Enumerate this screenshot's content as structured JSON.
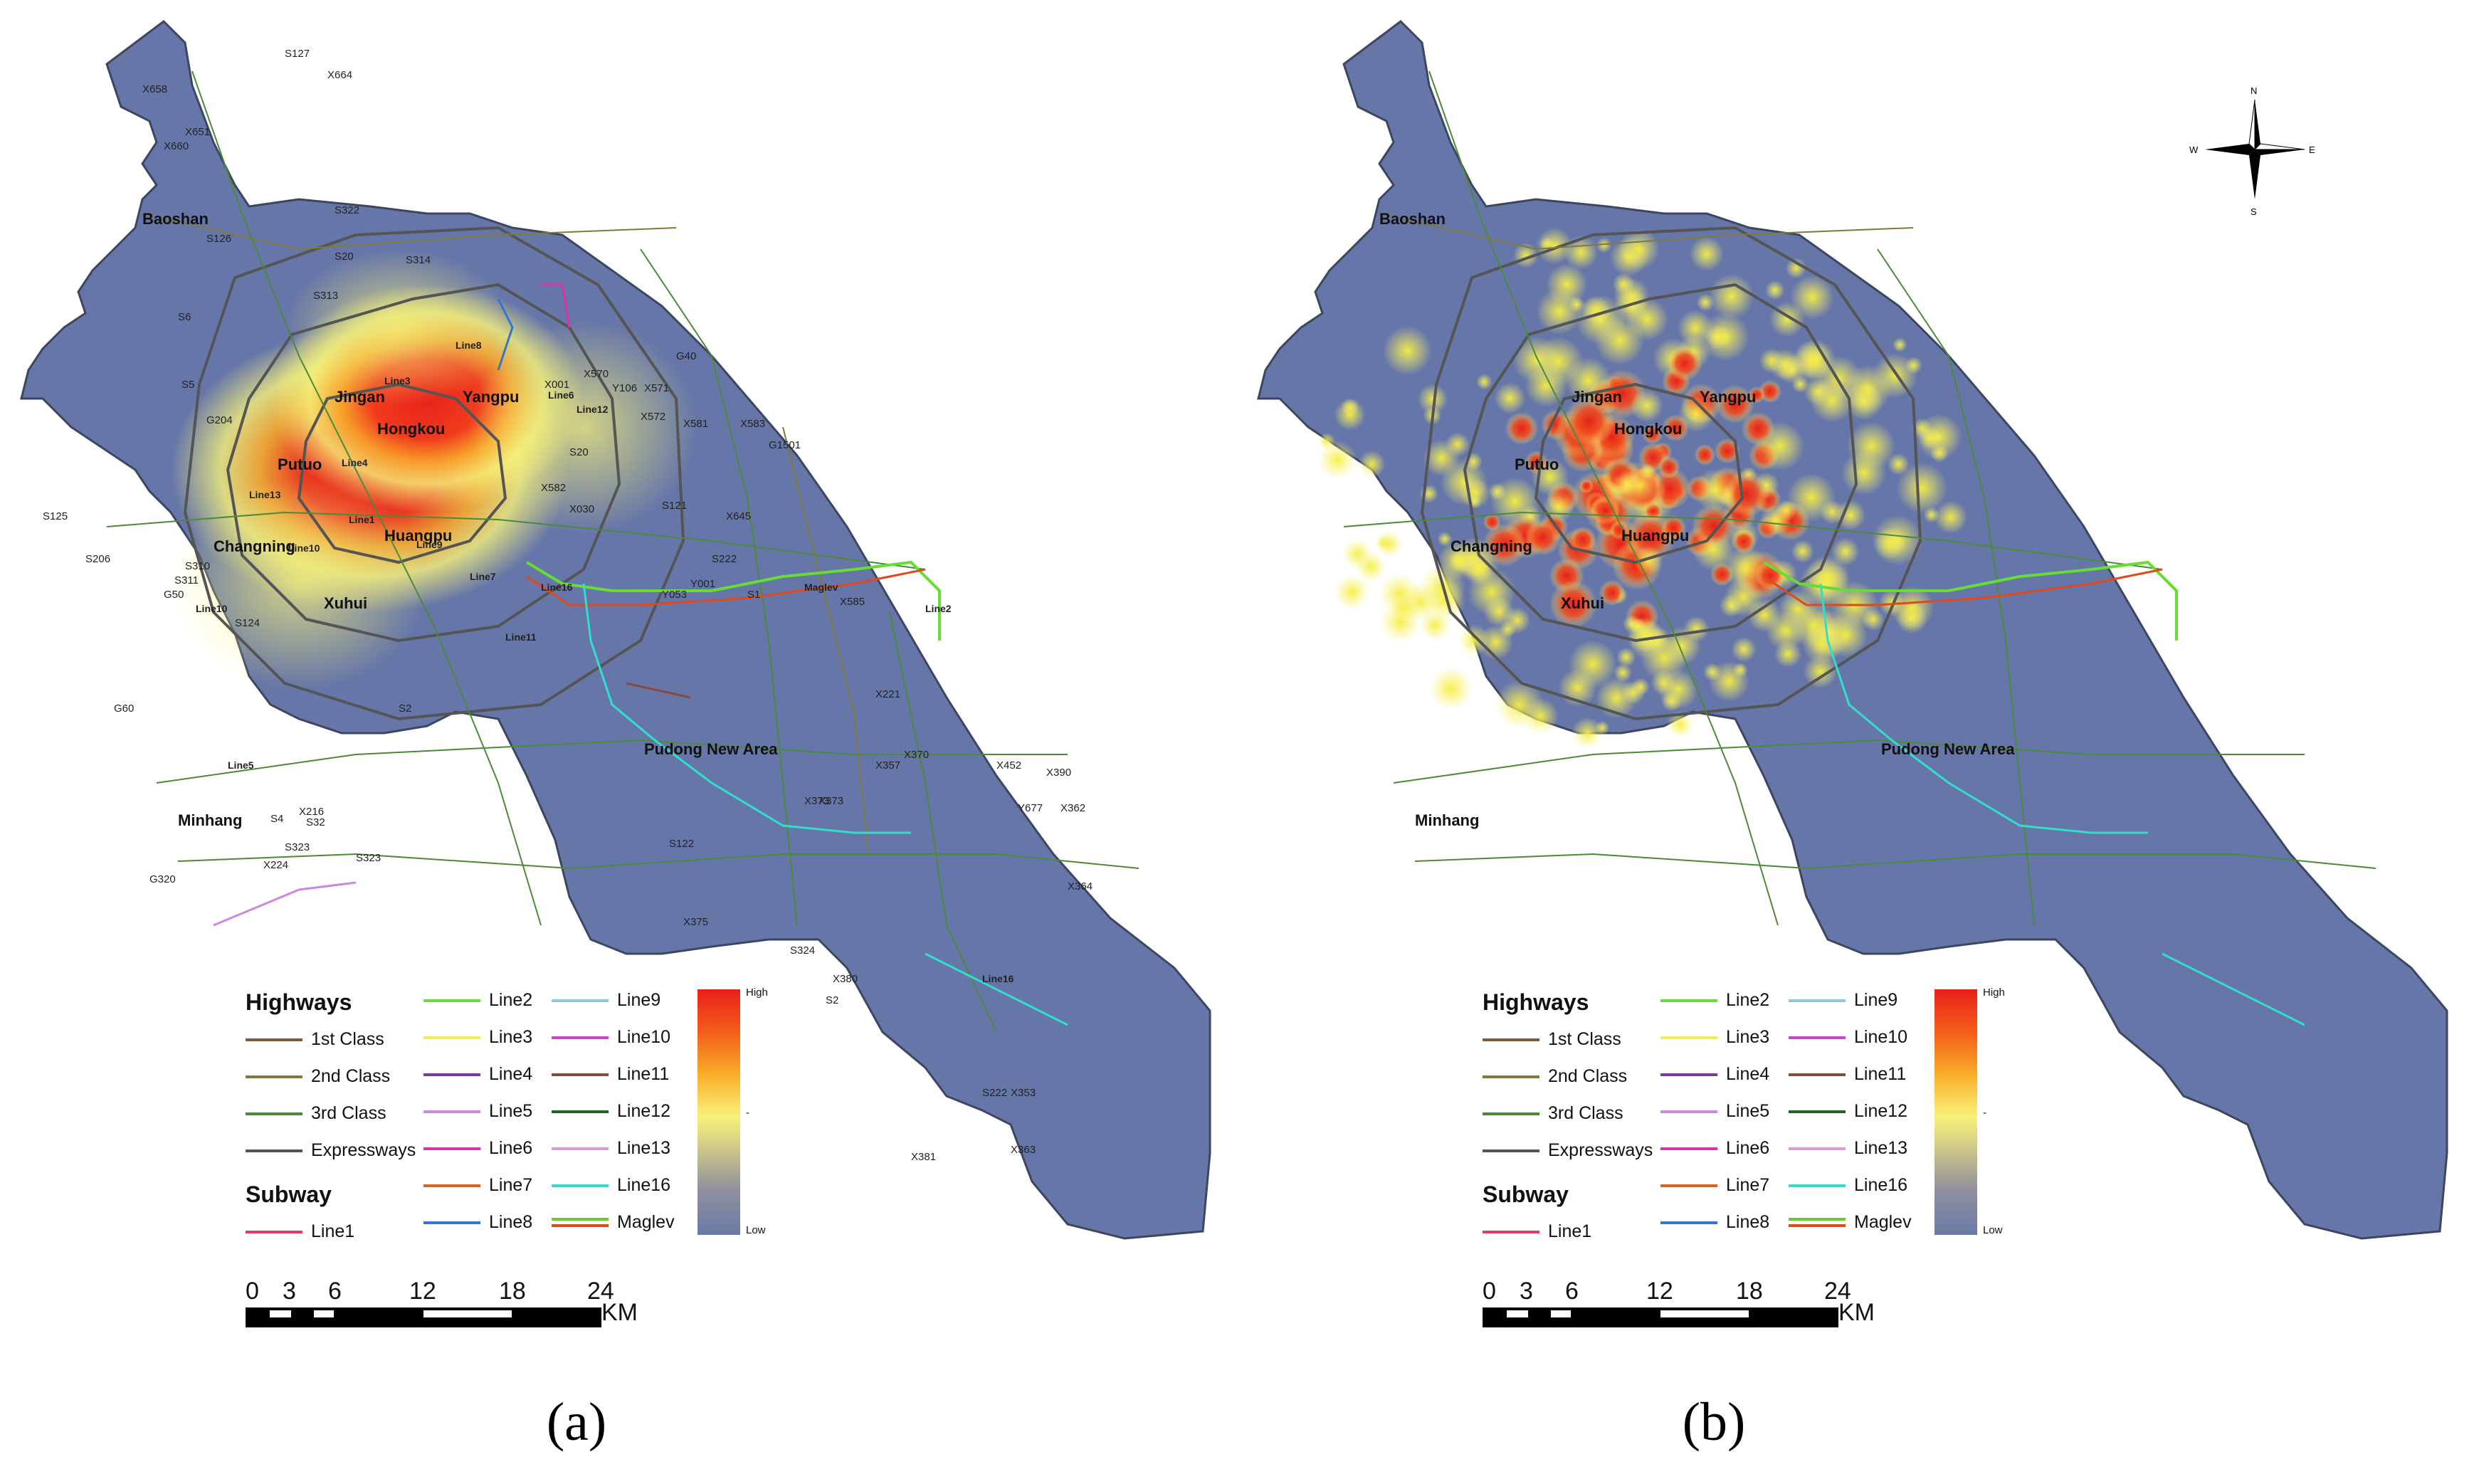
{
  "panels": [
    {
      "caption": "(a)",
      "districts": [
        "Baoshan",
        "Jingan",
        "Yangpu",
        "Hongkou",
        "Putuo",
        "Changning",
        "Huangpu",
        "Xuhui",
        "Minhang",
        "Pudong New Area"
      ],
      "road_labels": [
        "S127",
        "X664",
        "X658",
        "X651",
        "X660",
        "S322",
        "S126",
        "S20",
        "S313",
        "S314",
        "S6",
        "S5",
        "G204",
        "X001",
        "X570",
        "Y106",
        "X571",
        "G40",
        "X572",
        "X581",
        "X583",
        "S20",
        "G1501",
        "X582",
        "X030",
        "S121",
        "X645",
        "S125",
        "S206",
        "S222",
        "G50",
        "S310",
        "S311",
        "S124",
        "Y001",
        "Y053",
        "S1",
        "X585",
        "S32",
        "G60",
        "X216",
        "S4",
        "G320",
        "X224",
        "S323",
        "S2",
        "S122",
        "X221",
        "X373",
        "X357",
        "X370",
        "X452",
        "X390",
        "Y677",
        "X362",
        "X364",
        "X375",
        "S324",
        "X380",
        "S2",
        "S222",
        "X353",
        "X363",
        "X381",
        "S323",
        "X373"
      ],
      "line_labels": [
        "Line8",
        "Line3",
        "Line6",
        "Line12",
        "Line4",
        "Line13",
        "Line1",
        "Line10",
        "Line9",
        "Line7",
        "Line16",
        "Line11",
        "Line2",
        "Maglev",
        "Line10",
        "Line5",
        "Line16"
      ]
    },
    {
      "caption": "(b)",
      "districts": [
        "Baoshan",
        "Jingan",
        "Yangpu",
        "Hongkou",
        "Putuo",
        "Changning",
        "Huangpu",
        "Xuhui",
        "Minhang",
        "Pudong New Area"
      ]
    }
  ],
  "legend": {
    "highways_title": "Highways",
    "subway_title": "Subway",
    "highways": [
      {
        "label": "1st Class",
        "color": "#7a5c3a"
      },
      {
        "label": "2nd Class",
        "color": "#7f7a3a"
      },
      {
        "label": "3rd Class",
        "color": "#4c8a3a"
      },
      {
        "label": "Expressways",
        "color": "#555555"
      }
    ],
    "subway": [
      {
        "label": "Line1",
        "color": "#e04060"
      },
      {
        "label": "Line2",
        "color": "#66dd33"
      },
      {
        "label": "Line3",
        "color": "#eeee55"
      },
      {
        "label": "Line4",
        "color": "#7a3a9a"
      },
      {
        "label": "Line5",
        "color": "#cc88dd"
      },
      {
        "label": "Line6",
        "color": "#dd33aa"
      },
      {
        "label": "Line7",
        "color": "#e06020"
      },
      {
        "label": "Line8",
        "color": "#3377cc"
      },
      {
        "label": "Line9",
        "color": "#88ccdd"
      },
      {
        "label": "Line10",
        "color": "#cc44cc"
      },
      {
        "label": "Line11",
        "color": "#8a4a3a"
      },
      {
        "label": "Line12",
        "color": "#226622"
      },
      {
        "label": "Line13",
        "color": "#dd99dd"
      },
      {
        "label": "Line16",
        "color": "#33ddcc"
      },
      {
        "label": "Maglev",
        "color": "#66cc22",
        "color2": "#e04a1a"
      }
    ],
    "ramp_high": "High",
    "ramp_mid": "-",
    "ramp_low": "Low"
  },
  "scalebar": {
    "ticks": [
      "0",
      "3",
      "6",
      "12",
      "18",
      "24"
    ],
    "unit": "KM"
  },
  "compass": {
    "n": "N",
    "s": "S",
    "e": "E",
    "w": "W"
  }
}
